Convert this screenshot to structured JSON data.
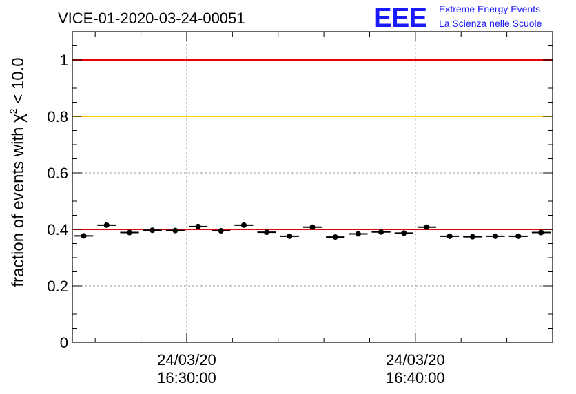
{
  "title": "VICE-01-2020-03-24-00051",
  "logo": {
    "mark": "EEE",
    "line1": "Extreme Energy Events",
    "line2": "La Scienza nelle Scuole",
    "color": "#1a1aff"
  },
  "chart_data": {
    "type": "scatter",
    "title": "VICE-01-2020-03-24-00051",
    "ylabel": "fraction of events with χ",
    "ylabel_sup": "2",
    "ylabel_tail": " < 10.0",
    "xlabel": "",
    "ylim": [
      0,
      1.1
    ],
    "yticks": [
      0,
      0.2,
      0.4,
      0.6,
      0.8,
      1
    ],
    "ytick_labels": [
      "0",
      "0.2",
      "0.4",
      "0.6",
      "0.8",
      "1"
    ],
    "xlim_minutes": [
      -5,
      16
    ],
    "xticks_minutes": [
      0,
      10
    ],
    "xtick_labels": [
      [
        "24/03/20",
        "16:30:00"
      ],
      [
        "24/03/20",
        "16:40:00"
      ]
    ],
    "grid": true,
    "reference_lines": [
      {
        "y": 1.0,
        "color": "#e8000b"
      },
      {
        "y": 0.8,
        "color": "#ffcc00"
      },
      {
        "y": 0.4,
        "color": "#e8000b"
      }
    ],
    "bin_width_minutes": 1,
    "series": [
      {
        "marker_color": "#000000",
        "x_minutes": [
          -4.5,
          -3.5,
          -2.5,
          -1.5,
          -0.5,
          0.5,
          1.5,
          2.5,
          3.5,
          4.5,
          5.5,
          6.5,
          7.5,
          8.5,
          9.5,
          10.5,
          11.5,
          12.5,
          13.5,
          14.5,
          15.5
        ],
        "values": [
          0.377,
          0.415,
          0.389,
          0.397,
          0.396,
          0.41,
          0.395,
          0.415,
          0.39,
          0.376,
          0.408,
          0.373,
          0.384,
          0.391,
          0.387,
          0.408,
          0.376,
          0.374,
          0.376,
          0.376,
          0.389
        ]
      }
    ]
  }
}
